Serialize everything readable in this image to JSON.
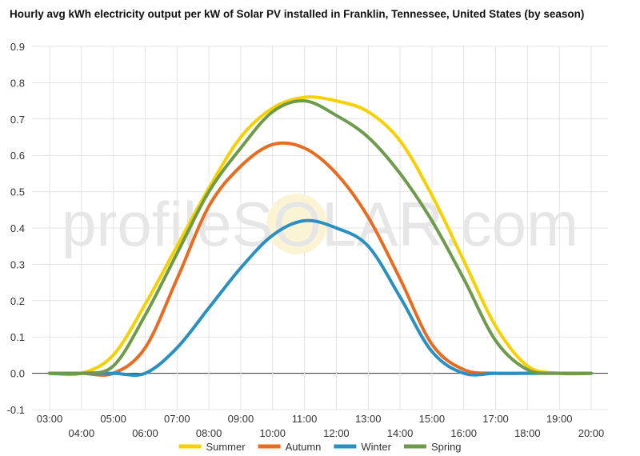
{
  "chart_data": {
    "type": "line",
    "title": "Hourly avg kWh electricity output per kW of Solar PV installed in Franklin, Tennessee, United States (by season)",
    "watermark": "profileSOLAR.com",
    "xlabel": "",
    "ylabel": "",
    "ylim": [
      -0.1,
      0.9
    ],
    "yticks": [
      "0.9",
      "0.8",
      "0.7",
      "0.6",
      "0.5",
      "0.4",
      "0.3",
      "0.2",
      "0.1",
      "0.0",
      "-0.1"
    ],
    "x": [
      "03:00",
      "04:00",
      "05:00",
      "06:00",
      "07:00",
      "08:00",
      "09:00",
      "10:00",
      "11:00",
      "12:00",
      "13:00",
      "14:00",
      "15:00",
      "16:00",
      "17:00",
      "18:00",
      "19:00",
      "20:00"
    ],
    "grid": true,
    "legend_position": "bottom",
    "series": [
      {
        "name": "Summer",
        "color": "#f7d000",
        "values": [
          0.0,
          0.0,
          0.05,
          0.19,
          0.35,
          0.51,
          0.65,
          0.73,
          0.76,
          0.75,
          0.72,
          0.64,
          0.49,
          0.31,
          0.13,
          0.02,
          0.0,
          0.0
        ]
      },
      {
        "name": "Autumn",
        "color": "#e86c1f",
        "values": [
          0.0,
          0.0,
          0.0,
          0.07,
          0.26,
          0.46,
          0.57,
          0.63,
          0.62,
          0.55,
          0.43,
          0.26,
          0.08,
          0.01,
          0.0,
          0.0,
          0.0,
          0.0
        ]
      },
      {
        "name": "Winter",
        "color": "#2990c1",
        "values": [
          0.0,
          0.0,
          0.0,
          0.0,
          0.07,
          0.18,
          0.29,
          0.38,
          0.42,
          0.4,
          0.35,
          0.21,
          0.06,
          0.0,
          0.0,
          0.0,
          0.0,
          0.0
        ]
      },
      {
        "name": "Spring",
        "color": "#6e9a4b",
        "values": [
          0.0,
          0.0,
          0.02,
          0.16,
          0.33,
          0.5,
          0.62,
          0.72,
          0.75,
          0.71,
          0.65,
          0.55,
          0.42,
          0.26,
          0.09,
          0.01,
          0.0,
          0.0
        ]
      }
    ]
  }
}
